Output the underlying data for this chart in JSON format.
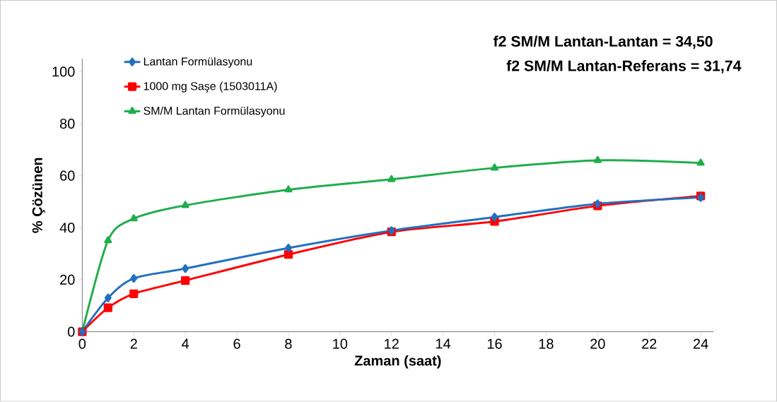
{
  "chart_data": {
    "type": "line",
    "xlabel": "Zaman (saat)",
    "ylabel": "% Çözünen",
    "x": [
      0,
      1,
      2,
      4,
      8,
      12,
      16,
      20,
      24
    ],
    "series": [
      {
        "name": "Lantan Formülasyonu",
        "color": "#2170c0",
        "marker": "diamond",
        "values": [
          0,
          13.0,
          20.5,
          24.3,
          32.2,
          38.9,
          44.1,
          49.2,
          51.6
        ]
      },
      {
        "name": "1000 mg Saşe (1503011A)",
        "color": "#ff0000",
        "marker": "square",
        "values": [
          0,
          9.2,
          14.6,
          19.7,
          29.7,
          38.4,
          42.4,
          48.4,
          52.2
        ]
      },
      {
        "name": "SM/M Lantan Formülasyonu",
        "color": "#1fae4c",
        "marker": "triangle",
        "values": [
          0,
          35.1,
          43.5,
          48.6,
          54.6,
          58.6,
          63.0,
          65.9,
          64.9
        ]
      }
    ],
    "xlim": [
      0,
      24.5
    ],
    "ylim": [
      0,
      105
    ],
    "xticks": [
      0,
      2,
      4,
      6,
      8,
      10,
      12,
      14,
      16,
      18,
      20,
      22,
      24
    ],
    "yticks": [
      0,
      20,
      40,
      60,
      80,
      100
    ],
    "grid": false,
    "legend": "top left",
    "line_style": "solid",
    "annotations": [
      "f2 SM/M Lantan-Lantan = 34,50",
      "f2 SM/M Lantan-Referans = 31,74"
    ]
  }
}
